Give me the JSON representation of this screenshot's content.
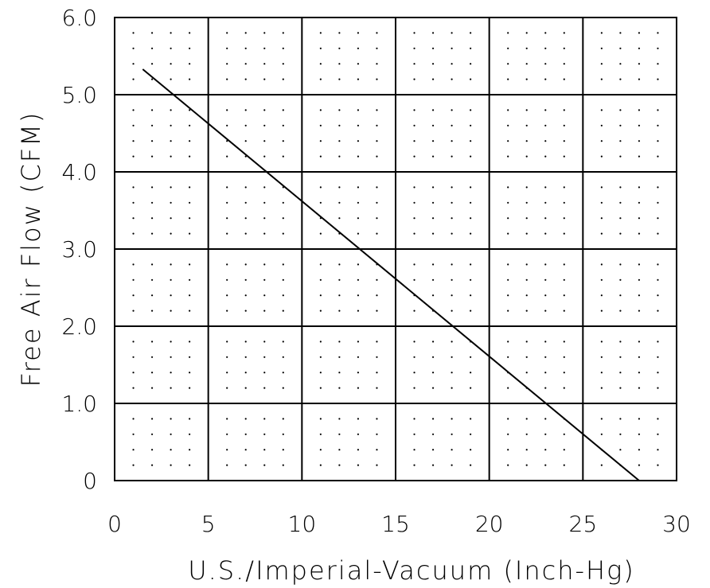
{
  "chart_data": {
    "type": "line",
    "title": "",
    "xlabel": "U.S./Imperial-Vacuum (Inch-Hg)",
    "ylabel": "Free Air Flow (CFM)",
    "xlim": [
      0,
      30
    ],
    "ylim": [
      0,
      6
    ],
    "x_ticks": [
      0,
      5,
      10,
      15,
      20,
      25,
      30
    ],
    "x_tick_labels": [
      "0",
      "5",
      "10",
      "15",
      "20",
      "25",
      "30"
    ],
    "y_ticks": [
      0,
      1,
      2,
      3,
      4,
      5,
      6
    ],
    "y_tick_labels": [
      "0",
      "1.0",
      "2.0",
      "3.0",
      "4.0",
      "5.0",
      "6.0"
    ],
    "grid": true,
    "minor_grid": "dotted",
    "line_color": "#000000",
    "series": [
      {
        "x": [
          1.5,
          28
        ],
        "y": [
          5.33,
          0
        ]
      }
    ]
  }
}
